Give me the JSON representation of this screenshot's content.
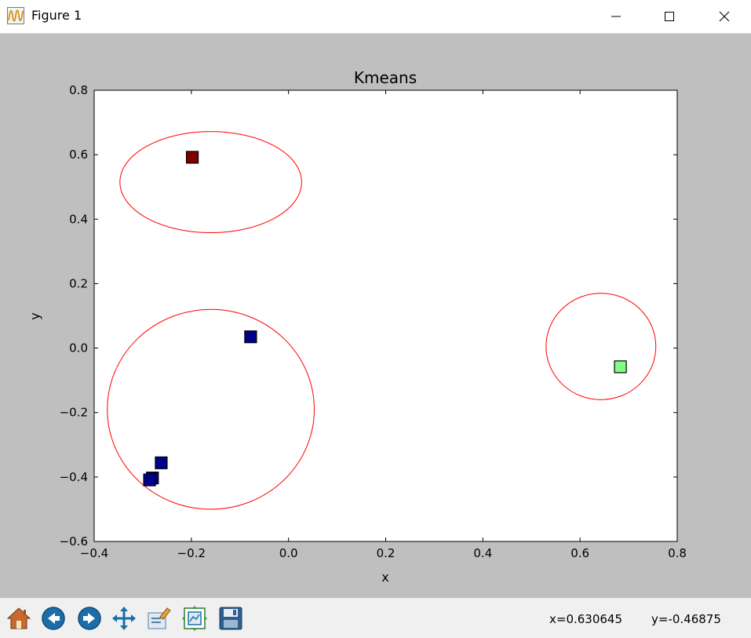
{
  "window": {
    "title": "Figure 1"
  },
  "toolbar": {
    "buttons": [
      "home-icon",
      "back-icon",
      "forward-icon",
      "pan-icon",
      "subplots-icon",
      "zoom-icon",
      "save-icon"
    ],
    "coord_x": "x=0.630645",
    "coord_y": "y=-0.46875"
  },
  "chart_data": {
    "type": "scatter",
    "title": "Kmeans",
    "xlabel": "x",
    "ylabel": "y",
    "xlim": [
      -0.4,
      0.8
    ],
    "ylim": [
      -0.6,
      0.8
    ],
    "xticks": [
      -0.4,
      -0.2,
      0.0,
      0.2,
      0.4,
      0.6,
      0.8
    ],
    "xtick_labels": [
      "−0.4",
      "−0.2",
      "0.0",
      "0.2",
      "0.4",
      "0.6",
      "0.8"
    ],
    "yticks": [
      -0.6,
      -0.4,
      -0.2,
      0.0,
      0.2,
      0.4,
      0.6,
      0.8
    ],
    "ytick_labels": [
      "−0.6",
      "−0.4",
      "−0.2",
      "0.0",
      "0.2",
      "0.4",
      "0.6",
      "0.8"
    ],
    "points": [
      {
        "x": -0.198,
        "y": 0.592,
        "color": "#800000",
        "cluster": 1
      },
      {
        "x": -0.078,
        "y": 0.035,
        "color": "#00008b",
        "cluster": 0
      },
      {
        "x": -0.262,
        "y": -0.356,
        "color": "#00008b",
        "cluster": 0
      },
      {
        "x": -0.28,
        "y": -0.403,
        "color": "#00008b",
        "cluster": 0
      },
      {
        "x": -0.286,
        "y": -0.409,
        "color": "#00008b",
        "cluster": 0
      },
      {
        "x": 0.683,
        "y": -0.058,
        "color": "#80ff80",
        "cluster": 2
      }
    ],
    "circles": [
      {
        "cx": -0.16,
        "cy": 0.515,
        "rx": 0.187,
        "ry": 0.157,
        "color": "#ff0000"
      },
      {
        "cx": -0.16,
        "cy": -0.19,
        "rx": 0.213,
        "ry": 0.31,
        "color": "#ff0000"
      },
      {
        "cx": 0.643,
        "cy": 0.005,
        "rx": 0.113,
        "ry": 0.165,
        "color": "#ff0000"
      }
    ]
  }
}
